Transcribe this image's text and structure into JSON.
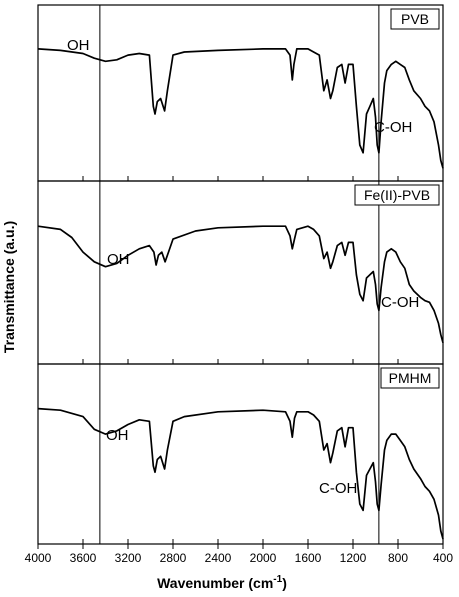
{
  "chart_data": {
    "type": "line",
    "xlabel_main": "Wavenumber (cm",
    "xlabel_sup": "-1",
    "xlabel_end": ")",
    "ylabel": "Transmittance (a.u.)",
    "x_tick_labels": [
      "4000",
      "3600",
      "3200",
      "2800",
      "2400",
      "2000",
      "1600",
      "1200",
      "800",
      "400"
    ],
    "xlim": [
      4000,
      400
    ],
    "x_reversed": true,
    "stacked_panels": 3,
    "reference_lines_x": [
      3450,
      970
    ],
    "series": [
      {
        "name": "PVB",
        "annotations": [
          "OH",
          "C-OH"
        ],
        "points": [
          [
            4000,
            82
          ],
          [
            3800,
            81
          ],
          [
            3600,
            79
          ],
          [
            3500,
            76
          ],
          [
            3400,
            74
          ],
          [
            3300,
            75
          ],
          [
            3200,
            78
          ],
          [
            3100,
            79
          ],
          [
            3010,
            78
          ],
          [
            2975,
            45
          ],
          [
            2960,
            40
          ],
          [
            2940,
            48
          ],
          [
            2910,
            50
          ],
          [
            2875,
            42
          ],
          [
            2850,
            55
          ],
          [
            2800,
            78
          ],
          [
            2700,
            80
          ],
          [
            2400,
            81
          ],
          [
            2000,
            82
          ],
          [
            1800,
            82
          ],
          [
            1760,
            78
          ],
          [
            1740,
            62
          ],
          [
            1725,
            72
          ],
          [
            1700,
            82
          ],
          [
            1600,
            82
          ],
          [
            1550,
            80
          ],
          [
            1500,
            78
          ],
          [
            1460,
            55
          ],
          [
            1430,
            62
          ],
          [
            1400,
            50
          ],
          [
            1380,
            55
          ],
          [
            1340,
            70
          ],
          [
            1300,
            72
          ],
          [
            1270,
            60
          ],
          [
            1240,
            72
          ],
          [
            1200,
            72
          ],
          [
            1170,
            45
          ],
          [
            1140,
            20
          ],
          [
            1110,
            15
          ],
          [
            1080,
            40
          ],
          [
            1050,
            45
          ],
          [
            1020,
            50
          ],
          [
            1000,
            38
          ],
          [
            985,
            20
          ],
          [
            970,
            15
          ],
          [
            950,
            35
          ],
          [
            920,
            60
          ],
          [
            900,
            68
          ],
          [
            860,
            72
          ],
          [
            820,
            74
          ],
          [
            780,
            72
          ],
          [
            740,
            70
          ],
          [
            700,
            62
          ],
          [
            660,
            55
          ],
          [
            600,
            50
          ],
          [
            560,
            45
          ],
          [
            520,
            42
          ],
          [
            480,
            35
          ],
          [
            440,
            20
          ],
          [
            420,
            10
          ],
          [
            400,
            5
          ]
        ]
      },
      {
        "name": "Fe(II)-PVB",
        "annotations": [
          "OH",
          "C-OH"
        ],
        "points": [
          [
            4000,
            82
          ],
          [
            3800,
            80
          ],
          [
            3700,
            75
          ],
          [
            3600,
            66
          ],
          [
            3500,
            60
          ],
          [
            3400,
            57
          ],
          [
            3300,
            59
          ],
          [
            3200,
            64
          ],
          [
            3100,
            68
          ],
          [
            3010,
            70
          ],
          [
            2970,
            66
          ],
          [
            2950,
            58
          ],
          [
            2930,
            64
          ],
          [
            2900,
            66
          ],
          [
            2870,
            60
          ],
          [
            2840,
            66
          ],
          [
            2800,
            74
          ],
          [
            2600,
            79
          ],
          [
            2400,
            81
          ],
          [
            2000,
            82
          ],
          [
            1800,
            82
          ],
          [
            1760,
            76
          ],
          [
            1740,
            68
          ],
          [
            1720,
            74
          ],
          [
            1700,
            80
          ],
          [
            1600,
            82
          ],
          [
            1550,
            80
          ],
          [
            1500,
            76
          ],
          [
            1460,
            62
          ],
          [
            1430,
            66
          ],
          [
            1400,
            56
          ],
          [
            1380,
            60
          ],
          [
            1340,
            70
          ],
          [
            1300,
            72
          ],
          [
            1270,
            64
          ],
          [
            1240,
            72
          ],
          [
            1200,
            72
          ],
          [
            1170,
            52
          ],
          [
            1140,
            40
          ],
          [
            1110,
            36
          ],
          [
            1080,
            50
          ],
          [
            1050,
            52
          ],
          [
            1020,
            54
          ],
          [
            1000,
            46
          ],
          [
            985,
            34
          ],
          [
            970,
            30
          ],
          [
            950,
            44
          ],
          [
            920,
            60
          ],
          [
            900,
            66
          ],
          [
            860,
            68
          ],
          [
            820,
            66
          ],
          [
            780,
            60
          ],
          [
            740,
            56
          ],
          [
            700,
            46
          ],
          [
            660,
            42
          ],
          [
            600,
            38
          ],
          [
            560,
            36
          ],
          [
            520,
            35
          ],
          [
            480,
            30
          ],
          [
            440,
            22
          ],
          [
            420,
            15
          ],
          [
            400,
            10
          ]
        ]
      },
      {
        "name": "PMHM",
        "annotations": [
          "OH",
          "C-OH"
        ],
        "points": [
          [
            4000,
            82
          ],
          [
            3800,
            81
          ],
          [
            3600,
            77
          ],
          [
            3500,
            69
          ],
          [
            3400,
            66
          ],
          [
            3300,
            68
          ],
          [
            3200,
            72
          ],
          [
            3100,
            75
          ],
          [
            3010,
            74
          ],
          [
            2975,
            46
          ],
          [
            2960,
            42
          ],
          [
            2940,
            50
          ],
          [
            2910,
            52
          ],
          [
            2875,
            44
          ],
          [
            2850,
            56
          ],
          [
            2800,
            74
          ],
          [
            2700,
            77
          ],
          [
            2400,
            80
          ],
          [
            2000,
            81
          ],
          [
            1800,
            80
          ],
          [
            1760,
            74
          ],
          [
            1740,
            64
          ],
          [
            1720,
            76
          ],
          [
            1700,
            80
          ],
          [
            1600,
            80
          ],
          [
            1550,
            78
          ],
          [
            1500,
            74
          ],
          [
            1460,
            56
          ],
          [
            1430,
            60
          ],
          [
            1400,
            48
          ],
          [
            1380,
            54
          ],
          [
            1340,
            68
          ],
          [
            1300,
            70
          ],
          [
            1270,
            58
          ],
          [
            1240,
            70
          ],
          [
            1200,
            70
          ],
          [
            1170,
            42
          ],
          [
            1140,
            22
          ],
          [
            1110,
            18
          ],
          [
            1080,
            40
          ],
          [
            1050,
            44
          ],
          [
            1020,
            48
          ],
          [
            1000,
            36
          ],
          [
            985,
            22
          ],
          [
            970,
            18
          ],
          [
            950,
            34
          ],
          [
            920,
            56
          ],
          [
            900,
            62
          ],
          [
            860,
            66
          ],
          [
            820,
            66
          ],
          [
            780,
            62
          ],
          [
            740,
            58
          ],
          [
            700,
            50
          ],
          [
            660,
            44
          ],
          [
            600,
            38
          ],
          [
            560,
            33
          ],
          [
            520,
            30
          ],
          [
            480,
            25
          ],
          [
            440,
            15
          ],
          [
            420,
            5
          ],
          [
            400,
            0
          ]
        ]
      }
    ]
  }
}
